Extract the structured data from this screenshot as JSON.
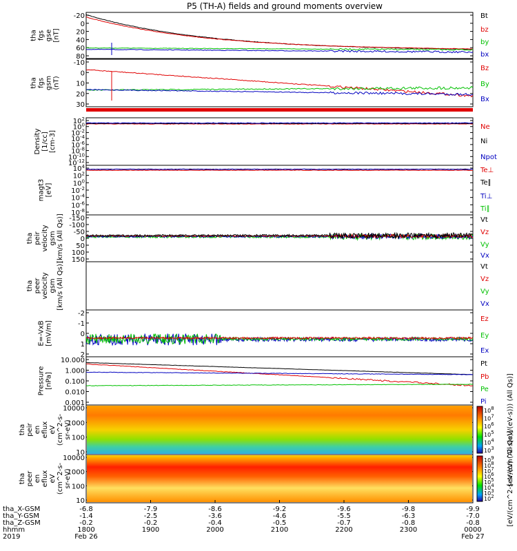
{
  "title": "P5 (TH-A) fields and ground moments overview",
  "colors": {
    "black": "#000000",
    "red": "#e00000",
    "green": "#00c000",
    "blue": "#0000c0"
  },
  "chart_data": [
    {
      "id": "fgs_gse",
      "type": "line",
      "ylabel": [
        "tha",
        "fgs",
        "gse",
        "[nT]"
      ],
      "yticks": [
        "-20",
        "0",
        "20",
        "40",
        "60",
        "80"
      ],
      "legend": [
        {
          "text": "Bt",
          "color": "black"
        },
        {
          "text": "bz",
          "color": "red"
        },
        {
          "text": "by",
          "color": "green"
        },
        {
          "text": "bx",
          "color": "blue"
        }
      ]
    },
    {
      "id": "fgs_gsm",
      "type": "line",
      "ylabel": [
        "tha",
        "fgs",
        "gsm",
        "(nT)"
      ],
      "yticks": [
        "-10",
        "0",
        "10",
        "20",
        "30"
      ],
      "legend": [
        {
          "text": "Bz",
          "color": "red"
        },
        {
          "text": "By",
          "color": "green"
        },
        {
          "text": "Bx",
          "color": "blue"
        }
      ]
    },
    {
      "id": "density",
      "type": "line",
      "yscale": "log",
      "ylabel": [
        "Density",
        "[1/cc]",
        "[cm-3]"
      ],
      "yticks": [
        "10^2",
        "10^0",
        "10^-2",
        "10^-4",
        "10^-6",
        "10^-8",
        "10^-10",
        "10^-12"
      ],
      "legend": [
        {
          "text": "Ne",
          "color": "red"
        },
        {
          "text": "Ni",
          "color": "black"
        },
        {
          "text": "Npot",
          "color": "blue"
        }
      ]
    },
    {
      "id": "temperature",
      "type": "line",
      "yscale": "log",
      "ylabel": [
        "magt3",
        "[eV]"
      ],
      "yticks": [
        "10^4",
        "10^2",
        "10^0",
        "10^-2",
        "10^-4",
        "10^-6",
        "10^-8"
      ],
      "legend": [
        {
          "text": "Te⊥",
          "color": "red"
        },
        {
          "text": "Te∥",
          "color": "black"
        },
        {
          "text": "Ti⊥",
          "color": "blue"
        },
        {
          "text": "Ti∥",
          "color": "green"
        }
      ]
    },
    {
      "id": "peir_velocity",
      "type": "line",
      "ylabel": [
        "tha",
        "peir",
        "velocity",
        "gsm",
        "[km/s (All Qs)]"
      ],
      "yticks": [
        "-150",
        "-100",
        "-50",
        "0",
        "50",
        "100",
        "150"
      ],
      "legend": [
        {
          "text": "Vt",
          "color": "black"
        },
        {
          "text": "Vz",
          "color": "red"
        },
        {
          "text": "Vy",
          "color": "green"
        },
        {
          "text": "Vx",
          "color": "blue"
        }
      ]
    },
    {
      "id": "peer_velocity",
      "type": "line",
      "ylabel": [
        "tha",
        "peer",
        "velocity",
        "gsm",
        "[km/s (All Qs)]"
      ],
      "yticks": [],
      "legend": [
        {
          "text": "Vt",
          "color": "black"
        },
        {
          "text": "Vz",
          "color": "red"
        },
        {
          "text": "Vy",
          "color": "green"
        },
        {
          "text": "Vx",
          "color": "blue"
        }
      ]
    },
    {
      "id": "efield",
      "type": "line",
      "ylabel": [
        "E=-VxB",
        "[mV/m]"
      ],
      "yticks": [
        "-2",
        "-1",
        "0",
        "1",
        "2"
      ],
      "legend": [
        {
          "text": "Ez",
          "color": "red"
        },
        {
          "text": "Ey",
          "color": "green"
        },
        {
          "text": "Ex",
          "color": "blue"
        }
      ]
    },
    {
      "id": "pressure",
      "type": "line",
      "yscale": "log",
      "ylabel": [
        "Pressure",
        "[nPa]"
      ],
      "yticks": [
        "10.000",
        "1.000",
        "0.100",
        "0.010",
        "0.001"
      ],
      "legend": [
        {
          "text": "Pt",
          "color": "black"
        },
        {
          "text": "Pb",
          "color": "red"
        },
        {
          "text": "Pe",
          "color": "green"
        },
        {
          "text": "Pi",
          "color": "blue"
        }
      ]
    },
    {
      "id": "peir_eflux",
      "type": "heatmap",
      "ylabel": [
        "tha",
        "peir",
        "en",
        "eflux",
        "eV",
        "(cm^2-s-",
        "sr-eV)"
      ],
      "yticks": [
        "10000",
        "1000",
        "100",
        "10"
      ],
      "colorbar_label": "[eV/(cm^2-s(eV/(eV-s))) (All Qs)]",
      "colorbar_ticks": [
        "10^8",
        "10^7",
        "10^6",
        "10^5",
        "10^4",
        "10^3"
      ]
    },
    {
      "id": "peer_eflux",
      "type": "heatmap",
      "ylabel": [
        "tha",
        "peer",
        "en",
        "eflux",
        "eV",
        "(cm^2-s-",
        "sr-eV)"
      ],
      "yticks": [
        "10000",
        "1000",
        "100",
        "10"
      ],
      "colorbar_label": "[eV/(cm^2-s-sr-eV) (All Qs)]",
      "colorbar_ticks": [
        "10^9",
        "10^8",
        "10^7",
        "10^6",
        "10^5",
        "10^4",
        "10^3",
        "10^2"
      ]
    }
  ],
  "xaxis": {
    "row_labels": [
      "tha_X-GSM",
      "tha_Y-GSM",
      "tha_Z-GSM",
      "hhmm",
      "2019"
    ],
    "columns": [
      {
        "x": "-6.8",
        "y": "-1.4",
        "z": "-0.2",
        "t": "1800",
        "d": "Feb 26"
      },
      {
        "x": "-7.9",
        "y": "-2.5",
        "z": "-0.2",
        "t": "1900",
        "d": ""
      },
      {
        "x": "-8.6",
        "y": "-3.6",
        "z": "-0.4",
        "t": "2000",
        "d": ""
      },
      {
        "x": "-9.2",
        "y": "-4.6",
        "z": "-0.5",
        "t": "2100",
        "d": ""
      },
      {
        "x": "-9.6",
        "y": "-5.5",
        "z": "-0.7",
        "t": "2200",
        "d": ""
      },
      {
        "x": "-9.8",
        "y": "-6.3",
        "z": "-0.8",
        "t": "2300",
        "d": ""
      },
      {
        "x": "-9.9",
        "y": "-7.0",
        "z": "-0.8",
        "t": "0000",
        "d": "Feb 27"
      }
    ]
  }
}
